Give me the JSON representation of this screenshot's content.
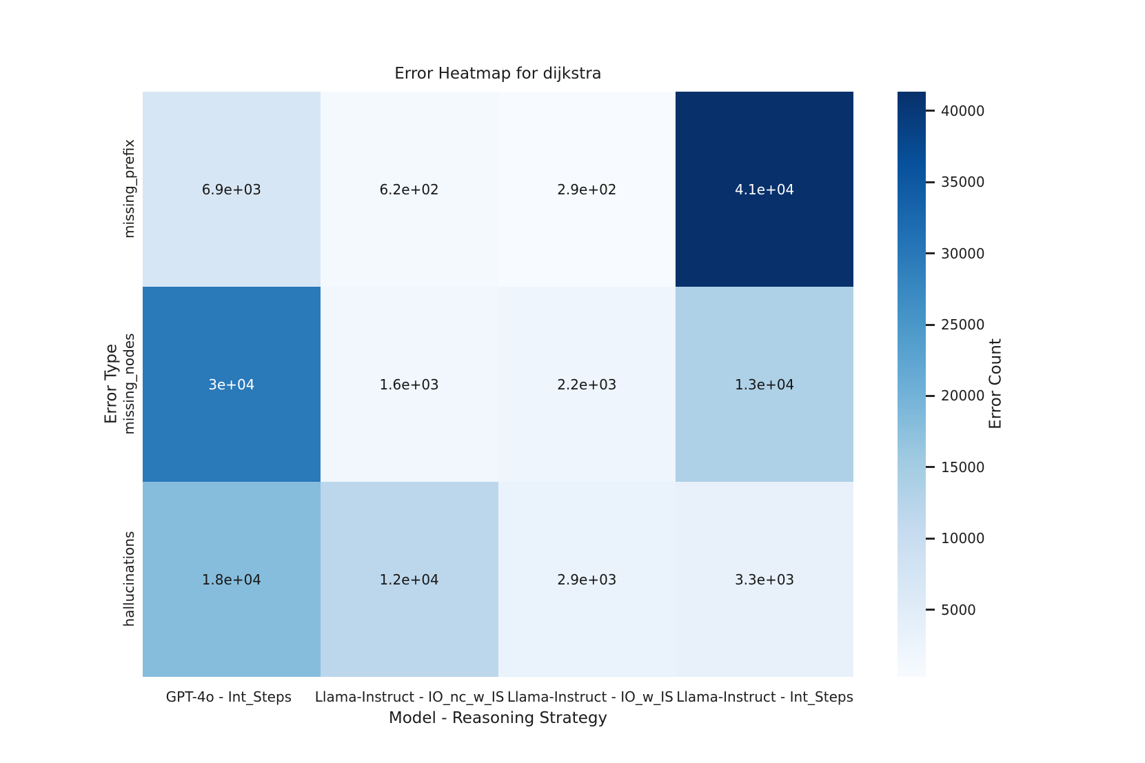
{
  "chart_data": {
    "type": "heatmap",
    "title": "Error Heatmap for dijkstra",
    "xlabel": "Model - Reasoning Strategy",
    "ylabel": "Error Type",
    "columns": [
      "GPT-4o - Int_Steps",
      "Llama-Instruct - IO_nc_w_IS",
      "Llama-Instruct - IO_w_IS",
      "Llama-Instruct - Int_Steps"
    ],
    "rows": [
      "missing_prefix",
      "missing_nodes",
      "hallucinations"
    ],
    "values": [
      [
        6900,
        620,
        290,
        41000
      ],
      [
        30000,
        1600,
        2200,
        13000
      ],
      [
        18000,
        12000,
        2900,
        3300
      ]
    ],
    "cell_labels": [
      [
        "6.9e+03",
        "6.2e+02",
        "2.9e+02",
        "4.1e+04"
      ],
      [
        "3e+04",
        "1.6e+03",
        "2.2e+03",
        "1.3e+04"
      ],
      [
        "1.8e+04",
        "1.2e+04",
        "2.9e+03",
        "3.3e+03"
      ]
    ],
    "colormap": "Blues",
    "colormap_stops": [
      "#f7fbff",
      "#deebf7",
      "#c6dbef",
      "#9ecae1",
      "#6baed6",
      "#4292c6",
      "#2171b5",
      "#08519c",
      "#08306b"
    ],
    "vmin": 290,
    "vmax": 41350,
    "grid": false,
    "legend_position": "none",
    "colorbar": {
      "label": "Error Count",
      "ticks": [
        "40000",
        "35000",
        "30000",
        "25000",
        "20000",
        "15000",
        "10000",
        "5000"
      ]
    }
  },
  "colors": {
    "background": "#ffffff",
    "text": "#1c1c1c",
    "annot_dark": "#161616",
    "annot_light": "#ffffff"
  },
  "cells": [
    {
      "label": "6.9e+03",
      "bg": "#d7e6f4",
      "fg": "#161616"
    },
    {
      "label": "6.2e+02",
      "bg": "#f4f9fe",
      "fg": "#161616"
    },
    {
      "label": "2.9e+02",
      "bg": "#f7fbff",
      "fg": "#161616"
    },
    {
      "label": "4.1e+04",
      "bg": "#08306b",
      "fg": "#ffffff"
    },
    {
      "label": "3e+04",
      "bg": "#2a79b9",
      "fg": "#ffffff"
    },
    {
      "label": "1.6e+03",
      "bg": "#f1f7fd",
      "fg": "#161616"
    },
    {
      "label": "2.2e+03",
      "bg": "#eef5fc",
      "fg": "#161616"
    },
    {
      "label": "1.3e+04",
      "bg": "#afd1e7",
      "fg": "#161616"
    },
    {
      "label": "1.8e+04",
      "bg": "#87bddc",
      "fg": "#161616"
    },
    {
      "label": "1.2e+04",
      "bg": "#bcd7eb",
      "fg": "#161616"
    },
    {
      "label": "2.9e+03",
      "bg": "#eaf3fb",
      "fg": "#161616"
    },
    {
      "label": "3.3e+03",
      "bg": "#e8f1fa",
      "fg": "#161616"
    }
  ]
}
